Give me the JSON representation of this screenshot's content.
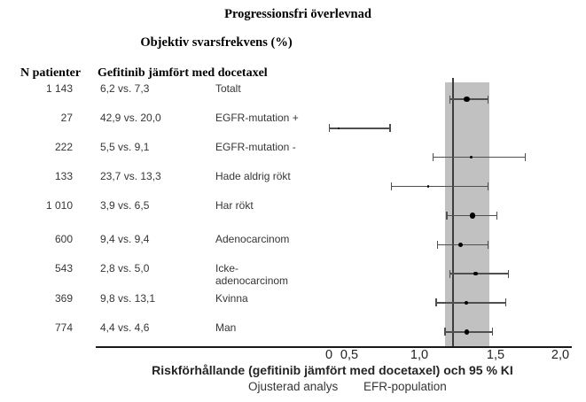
{
  "chart_data": {
    "type": "scatter",
    "subtype": "forest-plot",
    "title": "Progressionsfri överlevnad",
    "subtitle": "Objektiv svarsfrekvens (%)",
    "column_headers": {
      "n": "N patienter",
      "comparison": "Gefitinib jämfört med docetaxel"
    },
    "rows": [
      {
        "label": "Totalt",
        "n": "1 143",
        "orr": "6,2 vs. 7,3",
        "hr": 1.31,
        "ci_low": 1.2,
        "ci_high": 1.45
      },
      {
        "label": "EGFR-mutation +",
        "n": "27",
        "orr": "42,9 vs. 20,0",
        "hr": 0.24,
        "ci_low": 0.01,
        "ci_high": 0.79
      },
      {
        "label": "EGFR-mutation -",
        "n": "222",
        "orr": "5,5 vs. 9,1",
        "hr": 1.34,
        "ci_low": 1.09,
        "ci_high": 1.73
      },
      {
        "label": "Hade aldrig rökt",
        "n": "133",
        "orr": "23,7 vs. 13,3",
        "hr": 1.06,
        "ci_low": 0.8,
        "ci_high": 1.45
      },
      {
        "label": "Har rökt",
        "n": "1 010",
        "orr": "3,9 vs. 6,5",
        "hr": 1.35,
        "ci_low": 1.18,
        "ci_high": 1.51
      },
      {
        "label": "Adenocarcinom",
        "n": "600",
        "orr": "9,4 vs. 9,4",
        "hr": 1.27,
        "ci_low": 1.12,
        "ci_high": 1.45
      },
      {
        "label": "Icke-adenocarcinom",
        "n": "543",
        "orr": "2,8 vs. 5,0",
        "hr": 1.37,
        "ci_low": 1.2,
        "ci_high": 1.6
      },
      {
        "label": "Kvinna",
        "n": "369",
        "orr": "9,8 vs. 13,1",
        "hr": 1.31,
        "ci_low": 1.11,
        "ci_high": 1.58
      },
      {
        "label": "Man",
        "n": "774",
        "orr": "4,4 vs. 4,6",
        "hr": 1.31,
        "ci_low": 1.17,
        "ci_high": 1.48
      }
    ],
    "x_axis": {
      "tick_labels": [
        "0",
        "0,5",
        "1,0",
        "1,5",
        "2,0"
      ],
      "tick_values": [
        0,
        0.5,
        1.0,
        1.5,
        2.0
      ],
      "range": [
        0,
        2.05
      ]
    },
    "reference_line": 1.22,
    "shaded_band": {
      "low": 1.17,
      "high": 1.46,
      "color": "#c1c1c1"
    },
    "xlabel": "Riskförhållande (gefitinib jämfört med docetaxel) och 95 % KI",
    "footnotes": [
      "Ojusterad analys",
      "EFR-population"
    ],
    "marker_color": "#000000",
    "errorbar_color": "#4f4f4f",
    "grid": false,
    "legend_position": "bottom",
    "note": "Forest plot; HR and 95% CI values estimated from marker positions on axis; marker size scales with N"
  }
}
